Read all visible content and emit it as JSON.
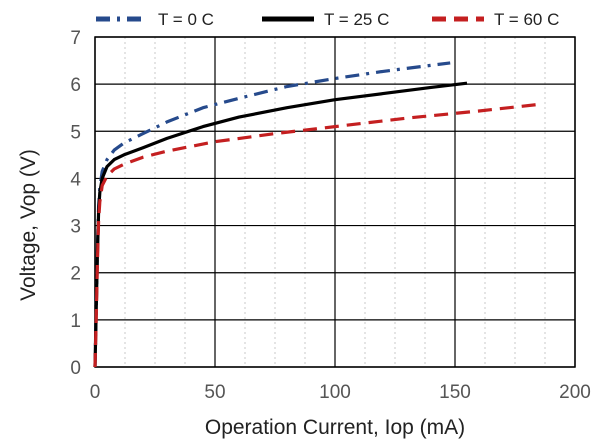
{
  "chart_data": {
    "type": "line",
    "title": "",
    "xlabel": "Operation Current, Iop (mA)",
    "ylabel": "Voltage, Vop (V)",
    "xlim": [
      0,
      200
    ],
    "ylim": [
      0,
      7
    ],
    "xticks": [
      0,
      50,
      100,
      150,
      200
    ],
    "yticks": [
      0,
      1,
      2,
      3,
      4,
      5,
      6,
      7
    ],
    "grid": true,
    "legend": "top",
    "series": [
      {
        "name": "T = 0 C",
        "color": "#264a8c",
        "dash": "dash-dot",
        "x": [
          0,
          0.5,
          1,
          1.5,
          2,
          3,
          5,
          8,
          12,
          20,
          30,
          45,
          60,
          80,
          100,
          120,
          148
        ],
        "y": [
          0,
          1.2,
          2.5,
          3.4,
          3.8,
          4.15,
          4.4,
          4.6,
          4.75,
          4.95,
          5.2,
          5.5,
          5.7,
          5.95,
          6.12,
          6.27,
          6.45
        ]
      },
      {
        "name": "T = 25 C",
        "color": "#000000",
        "dash": "solid",
        "x": [
          0,
          0.5,
          1,
          1.5,
          2,
          3,
          5,
          8,
          12,
          20,
          30,
          45,
          60,
          80,
          100,
          120,
          140,
          155
        ],
        "y": [
          0,
          1.2,
          2.4,
          3.3,
          3.7,
          4.0,
          4.25,
          4.4,
          4.5,
          4.65,
          4.85,
          5.1,
          5.3,
          5.5,
          5.67,
          5.8,
          5.93,
          6.02
        ]
      },
      {
        "name": "T = 60 C",
        "color": "#c41f20",
        "dash": "dashed",
        "x": [
          0,
          0.5,
          1,
          1.5,
          2,
          3,
          5,
          8,
          12,
          20,
          30,
          50,
          75,
          100,
          130,
          160,
          185
        ],
        "y": [
          0,
          1.0,
          2.2,
          3.1,
          3.5,
          3.85,
          4.05,
          4.2,
          4.3,
          4.45,
          4.58,
          4.78,
          4.95,
          5.1,
          5.28,
          5.43,
          5.57
        ]
      }
    ]
  }
}
